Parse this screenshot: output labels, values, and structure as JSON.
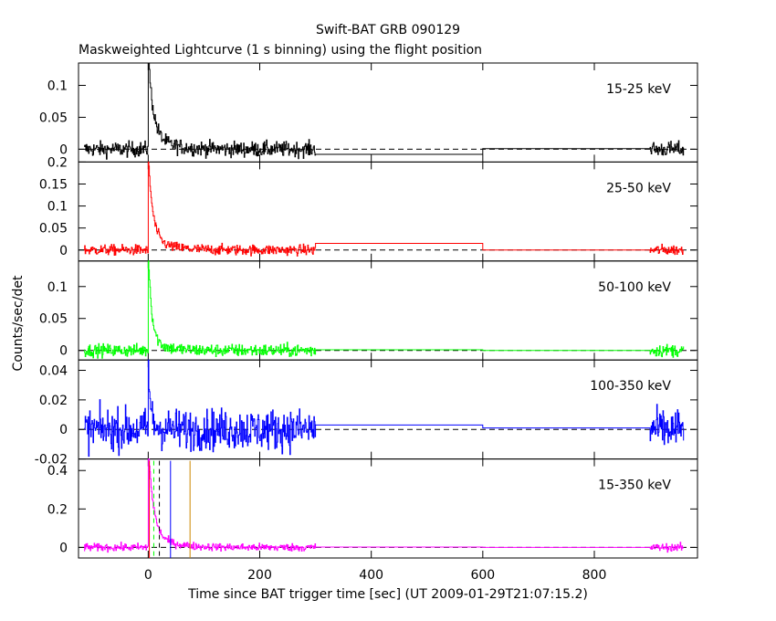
{
  "title": "Swift-BAT GRB 090129",
  "subtitle": "Maskweighted Lightcurve (1 s binning) using the flight position",
  "chart_data": {
    "type": "line",
    "xlabel": "Time since BAT trigger time [sec] (UT 2009-01-29T21:07:15.2)",
    "ylabel": "Counts/sec/det",
    "xlim": [
      -125,
      985
    ],
    "xticks": [
      0,
      200,
      400,
      600,
      800
    ],
    "data_gap": [
      300,
      900
    ],
    "panels": [
      {
        "band": "15-25 keV",
        "color": "#000000",
        "ylim": [
          -0.02,
          0.135
        ],
        "yticks": [
          0,
          0.05,
          0.1
        ],
        "ytick_labels": [
          "0",
          "0.05",
          "0.1"
        ],
        "peak": 0.125,
        "decay": 9,
        "noise": 0.006,
        "gap_levels": [
          -0.008,
          0.001
        ]
      },
      {
        "band": "25-50 keV",
        "color": "#ff0000",
        "ylim": [
          -0.025,
          0.2
        ],
        "yticks": [
          0,
          0.05,
          0.1,
          0.15,
          0.2
        ],
        "ytick_labels": [
          "0",
          "0.05",
          "0.1",
          "0.15",
          "0.2"
        ],
        "peak": 0.18,
        "decay": 8,
        "noise": 0.006,
        "gap_levels": [
          0.015,
          0.0
        ]
      },
      {
        "band": "50-100 keV",
        "color": "#00ff00",
        "ylim": [
          -0.015,
          0.14
        ],
        "yticks": [
          0,
          0.05,
          0.1
        ],
        "ytick_labels": [
          "0",
          "0.05",
          "0.1"
        ],
        "peak": 0.13,
        "decay": 6,
        "noise": 0.005,
        "gap_levels": [
          0.001,
          0.0
        ]
      },
      {
        "band": "100-350 keV",
        "color": "#0000ff",
        "ylim": [
          -0.02,
          0.047
        ],
        "yticks": [
          -0.02,
          0,
          0.02,
          0.04
        ],
        "ytick_labels": [
          "-0.02",
          "0",
          "0.02",
          "0.04"
        ],
        "peak": 0.04,
        "decay": 3,
        "noise": 0.007,
        "gap_levels": [
          0.003,
          0.001
        ]
      },
      {
        "band": "15-350 keV",
        "color": "#ff00ff",
        "ylim": [
          -0.055,
          0.46
        ],
        "yticks": [
          0,
          0.2,
          0.4
        ],
        "ytick_labels": [
          "0",
          "0.2",
          "0.4"
        ],
        "peak": 0.45,
        "decay": 9,
        "noise": 0.01,
        "gap_levels": [
          0.002,
          0.0
        ]
      }
    ],
    "markers": [
      {
        "x": 2,
        "color": "#ff0000",
        "style": "solid"
      },
      {
        "x": 10,
        "color": "#00ff00",
        "style": "dashed"
      },
      {
        "x": 20,
        "color": "#000000",
        "style": "dashed"
      },
      {
        "x": 40,
        "color": "#0000ff",
        "style": "solid"
      },
      {
        "x": 75,
        "color": "#cc8800",
        "style": "solid"
      }
    ]
  }
}
